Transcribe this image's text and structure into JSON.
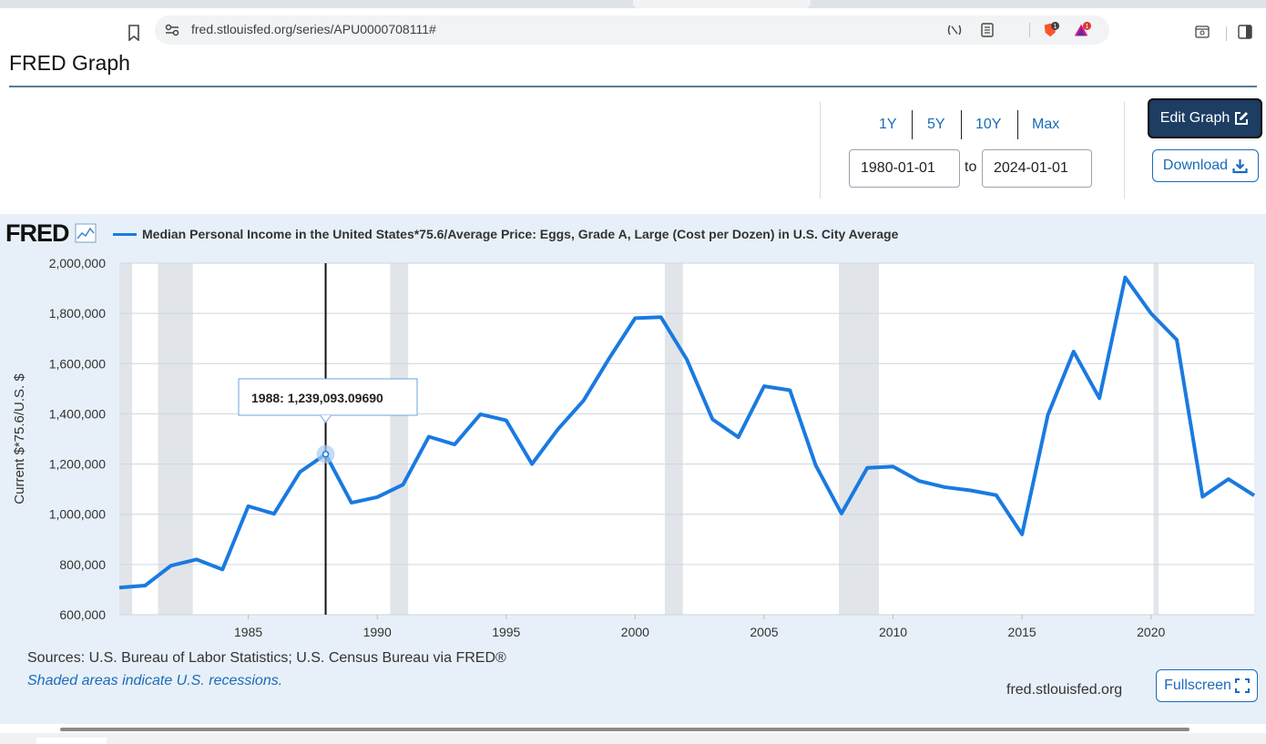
{
  "browser": {
    "url": "fred.stlouisfed.org/series/APU0000708111#",
    "shield_badge": "1",
    "alert_badge": "1"
  },
  "page": {
    "title": "FRED Graph"
  },
  "controls": {
    "ranges": [
      "1Y",
      "5Y",
      "10Y",
      "Max"
    ],
    "start_date": "1980-01-01",
    "end_date": "2024-01-01",
    "to_label": "to",
    "edit_label": "Edit Graph",
    "download_label": "Download"
  },
  "graph": {
    "logo": "FRED",
    "sources": "Sources: U.S. Bureau of Labor Statistics; U.S. Census Bureau via FRED®",
    "recession_note": "Shaded areas indicate U.S. recessions.",
    "site": "fred.stlouisfed.org",
    "fullscreen_label": "Fullscreen"
  },
  "chart_data": {
    "type": "line",
    "title": "",
    "series": [
      {
        "name": "Median Personal Income in the United States*75.6/Average Price: Eggs, Grade A, Large (Cost per Dozen) in U.S. City Average",
        "color": "#1a7ae0",
        "x": [
          1980,
          1981,
          1982,
          1983,
          1984,
          1985,
          1986,
          1987,
          1988,
          1989,
          1990,
          1991,
          1992,
          1993,
          1994,
          1995,
          1996,
          1997,
          1998,
          1999,
          2000,
          2001,
          2002,
          2003,
          2004,
          2005,
          2006,
          2007,
          2008,
          2009,
          2010,
          2011,
          2012,
          2013,
          2014,
          2015,
          2016,
          2017,
          2018,
          2019,
          2020,
          2021,
          2022,
          2023,
          2024
        ],
        "values": [
          708000,
          716000,
          795000,
          820000,
          780000,
          1032000,
          1002000,
          1168000,
          1239093.0969,
          1046000,
          1068000,
          1118000,
          1309000,
          1278000,
          1398000,
          1374000,
          1200000,
          1338000,
          1453000,
          1622000,
          1781000,
          1785000,
          1617000,
          1378000,
          1307000,
          1510000,
          1494000,
          1195000,
          1003000,
          1185000,
          1190000,
          1133000,
          1108000,
          1095000,
          1076000,
          920000,
          1395000,
          1648000,
          1462000,
          1943000,
          1800000,
          1695000,
          1070000,
          1140000,
          1075000
        ]
      }
    ],
    "xlabel": "",
    "ylabel": "Current $*75.6/U.S. $",
    "xlim": [
      1980,
      2024
    ],
    "ylim": [
      600000,
      2000000
    ],
    "y_ticks": [
      "600,000",
      "800,000",
      "1,000,000",
      "1,200,000",
      "1,400,000",
      "1,600,000",
      "1,800,000",
      "2,000,000"
    ],
    "y_tick_values": [
      600000,
      800000,
      1000000,
      1200000,
      1400000,
      1600000,
      1800000,
      2000000
    ],
    "x_ticks": [
      "1985",
      "1990",
      "1995",
      "2000",
      "2005",
      "2010",
      "2015",
      "2020"
    ],
    "x_tick_values": [
      1985,
      1990,
      1995,
      2000,
      2005,
      2010,
      2015,
      2020
    ],
    "recessions": [
      [
        1980.0,
        1980.5
      ],
      [
        1981.5,
        1982.85
      ],
      [
        1990.5,
        1991.2
      ],
      [
        2001.15,
        2001.85
      ],
      [
        2007.9,
        2009.45
      ],
      [
        2020.1,
        2020.3
      ]
    ],
    "grid": true,
    "legend": "top-left",
    "tooltip": {
      "x": 1988,
      "label": "1988:",
      "value": "1,239,093.09690"
    }
  }
}
